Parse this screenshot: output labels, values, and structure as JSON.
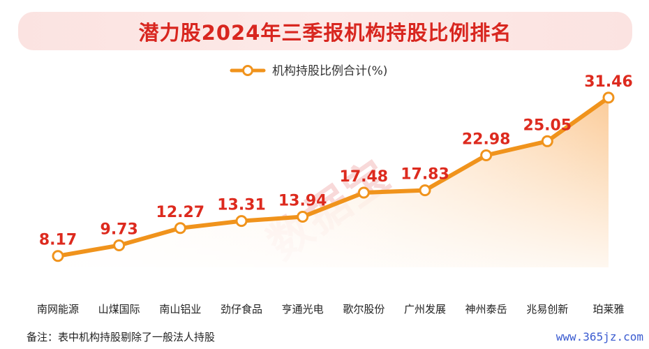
{
  "title": "潜力股2024年三季报机构持股比例排名",
  "watermark": "数据宝",
  "footnote": "备注：表中机构持股剔除了一般法人持股",
  "site": "www.365jz.com",
  "colors": {
    "line": "#f0931c",
    "label": "#dd2a1e",
    "title": "#d8261f"
  },
  "chart_data": {
    "type": "line",
    "categories": [
      "南网能源",
      "山煤国际",
      "南山铝业",
      "劲仔食品",
      "亨通光电",
      "歌尔股份",
      "广州发展",
      "神州泰岳",
      "兆易创新",
      "珀莱雅"
    ],
    "series": [
      {
        "name": "机构持股比例合计(%)",
        "values": [
          8.17,
          9.73,
          12.27,
          13.31,
          13.94,
          17.48,
          17.83,
          22.98,
          25.05,
          31.46
        ],
        "labels": [
          "8.17",
          "9.73",
          "12.27",
          "13.31",
          "13.94",
          "17.48",
          "17.83",
          "22.98",
          "25.05",
          "31.46"
        ]
      }
    ],
    "ylim": [
      0,
      35
    ],
    "legend_position": "top-center",
    "area_fill": true,
    "grid": false
  }
}
